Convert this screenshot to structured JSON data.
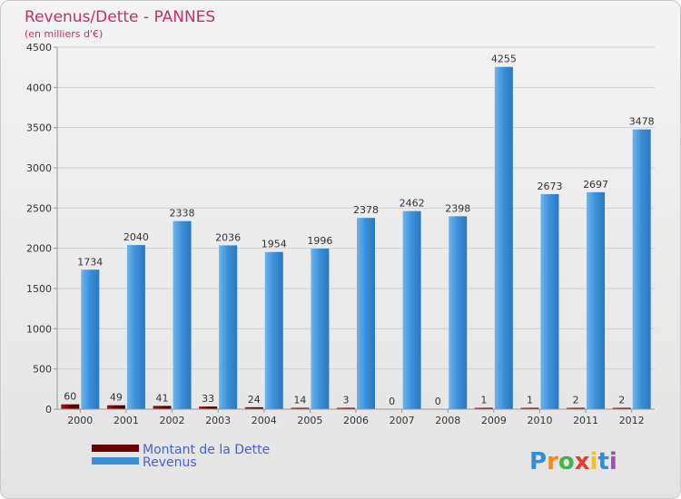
{
  "chart_data": {
    "type": "bar",
    "title": "Revenus/Dette - PANNES",
    "subtitle": "(en milliers d'€)",
    "categories": [
      "2000",
      "2001",
      "2002",
      "2003",
      "2004",
      "2005",
      "2006",
      "2007",
      "2008",
      "2009",
      "2010",
      "2011",
      "2012"
    ],
    "series": [
      {
        "name": "Montant de la Dette",
        "color": "#6b0000",
        "values": [
          60,
          49,
          41,
          33,
          24,
          14,
          3,
          0,
          0,
          1,
          1,
          2,
          2
        ]
      },
      {
        "name": "Revenus",
        "color": "#3a8fd8",
        "values": [
          1734,
          2040,
          2338,
          2036,
          1954,
          1996,
          2378,
          2462,
          2398,
          4255,
          2673,
          2697,
          3478
        ]
      }
    ],
    "ylim": [
      0,
      4500
    ],
    "yticks": [
      0,
      500,
      1000,
      1500,
      2000,
      2500,
      3000,
      3500,
      4000,
      4500
    ],
    "grid": true,
    "legend": "bottom-left"
  },
  "logo": {
    "text": "Proxiti"
  }
}
